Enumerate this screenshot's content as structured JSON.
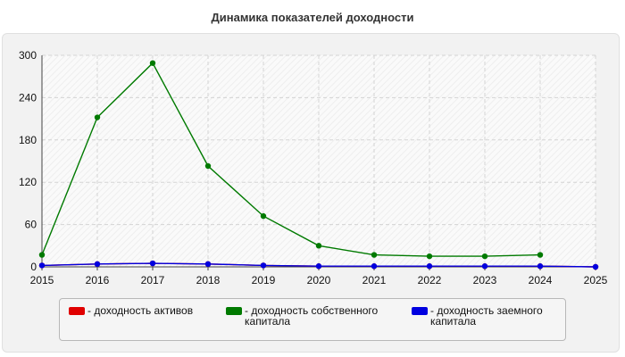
{
  "chart_data": {
    "type": "line",
    "title": "Динамика показателей доходности",
    "x": [
      "2015",
      "2016",
      "2017",
      "2018",
      "2019",
      "2020",
      "2021",
      "2022",
      "2023",
      "2024",
      "2025"
    ],
    "yticks": [
      "0",
      "60",
      "120",
      "180",
      "240",
      "300"
    ],
    "ylim": [
      0,
      300
    ],
    "grid": true,
    "legend_position": "bottom",
    "series": [
      {
        "name": "- доходность активов",
        "color": "#e00000",
        "values": [
          2,
          4,
          5,
          4,
          2,
          1,
          1,
          1,
          1,
          1,
          0
        ]
      },
      {
        "name": "- доходность собственного\nкапитала",
        "color": "#007a00",
        "values": [
          17,
          212,
          289,
          143,
          72,
          30,
          17,
          15,
          15,
          17,
          null
        ]
      },
      {
        "name": "- доходность заемного\nкапитала",
        "color": "#0000e0",
        "values": [
          2,
          4,
          5,
          4,
          2,
          1,
          1,
          1,
          1,
          1,
          0
        ]
      }
    ]
  }
}
